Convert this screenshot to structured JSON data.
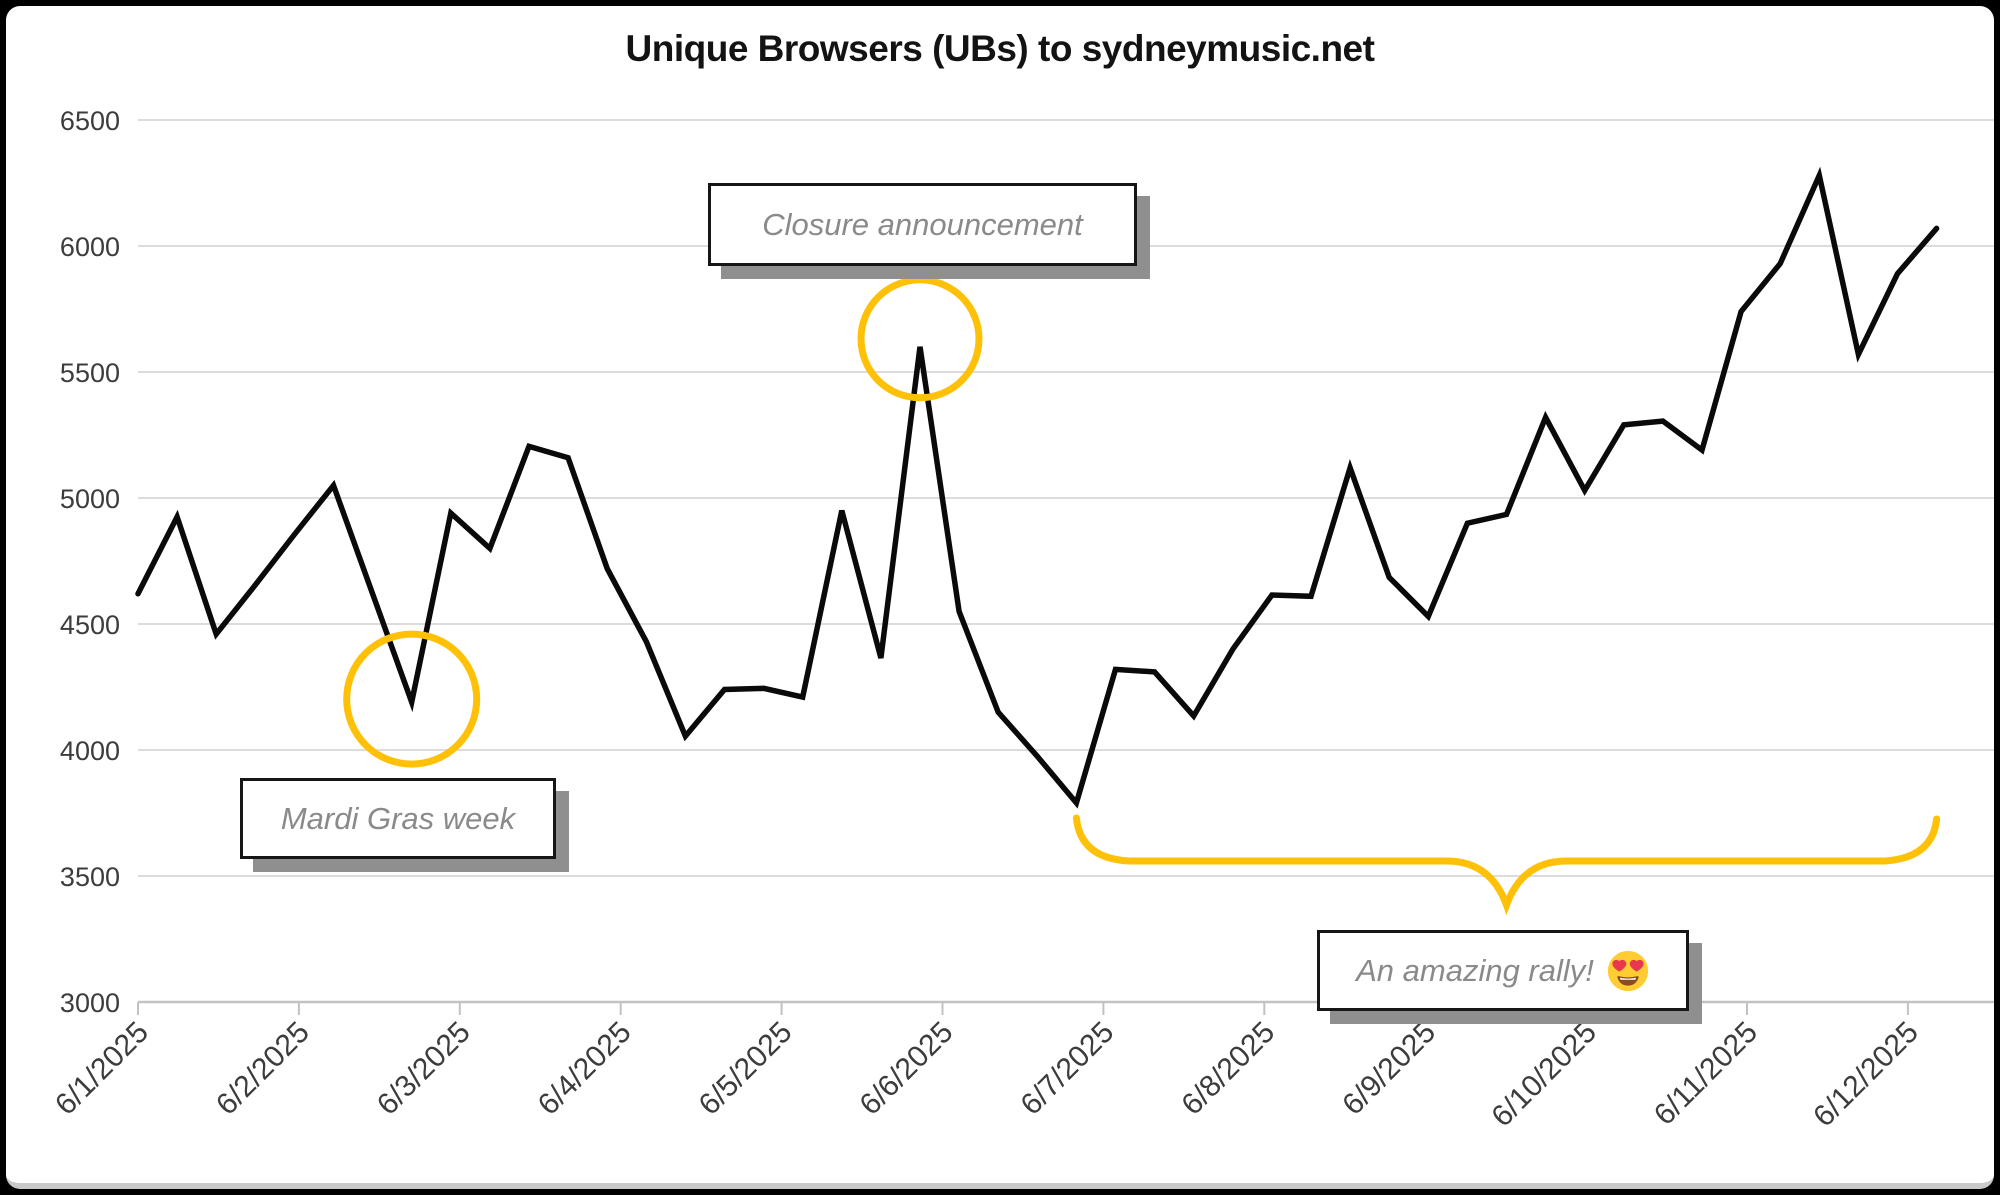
{
  "page": {
    "background_color": "#000000",
    "card_background_color": "#ffffff"
  },
  "chart_data": {
    "type": "line",
    "title": "Unique Browsers (UBs) to sydneymusic.net",
    "series_name": "Unique Browsers (UBs)",
    "xlabel": "",
    "ylabel": "",
    "ylim": [
      3000,
      6500
    ],
    "ytick_step": 500,
    "y_tick_labels": [
      "3000",
      "3500",
      "4000",
      "4500",
      "5000",
      "5500",
      "6000",
      "6500"
    ],
    "x_tick_labels": [
      "6/1/2025",
      "6/2/2025",
      "6/3/2025",
      "6/4/2025",
      "6/5/2025",
      "6/6/2025",
      "6/7/2025",
      "6/8/2025",
      "6/9/2025",
      "6/10/2025",
      "6/11/2025",
      "6/12/2025"
    ],
    "points_per_day": 4,
    "x_range_description": "6-hourly samples from 6/1/2025 to just past 6/12/2025",
    "grid": true,
    "legend_position": "none",
    "line_color": "#0a0a0a",
    "accent_color": "#FFC107",
    "values": [
      4620,
      4925,
      4460,
      4655,
      4855,
      5050,
      4620,
      4190,
      4940,
      4800,
      5205,
      5160,
      4720,
      4430,
      4055,
      4240,
      4245,
      4210,
      4950,
      4365,
      5600,
      4550,
      4150,
      3975,
      3790,
      4320,
      4310,
      4135,
      4400,
      4615,
      4610,
      5120,
      4685,
      4530,
      4900,
      4935,
      5320,
      5030,
      5290,
      5305,
      5190,
      5740,
      5930,
      6280,
      5570,
      5890,
      6070
    ],
    "annotations": {
      "mardi": {
        "label": "Mardi Gras week",
        "shape": "circle",
        "point_index": 7,
        "point_value": 4190
      },
      "closure": {
        "label": "Closure announcement",
        "shape": "circle",
        "point_index": 20,
        "point_value": 5600
      },
      "rally": {
        "label": "An amazing rally!",
        "emoji": "😍",
        "shape": "brace",
        "from_index": 24,
        "to_index": 46,
        "from_value": 3790,
        "to_value": 6070
      }
    }
  }
}
